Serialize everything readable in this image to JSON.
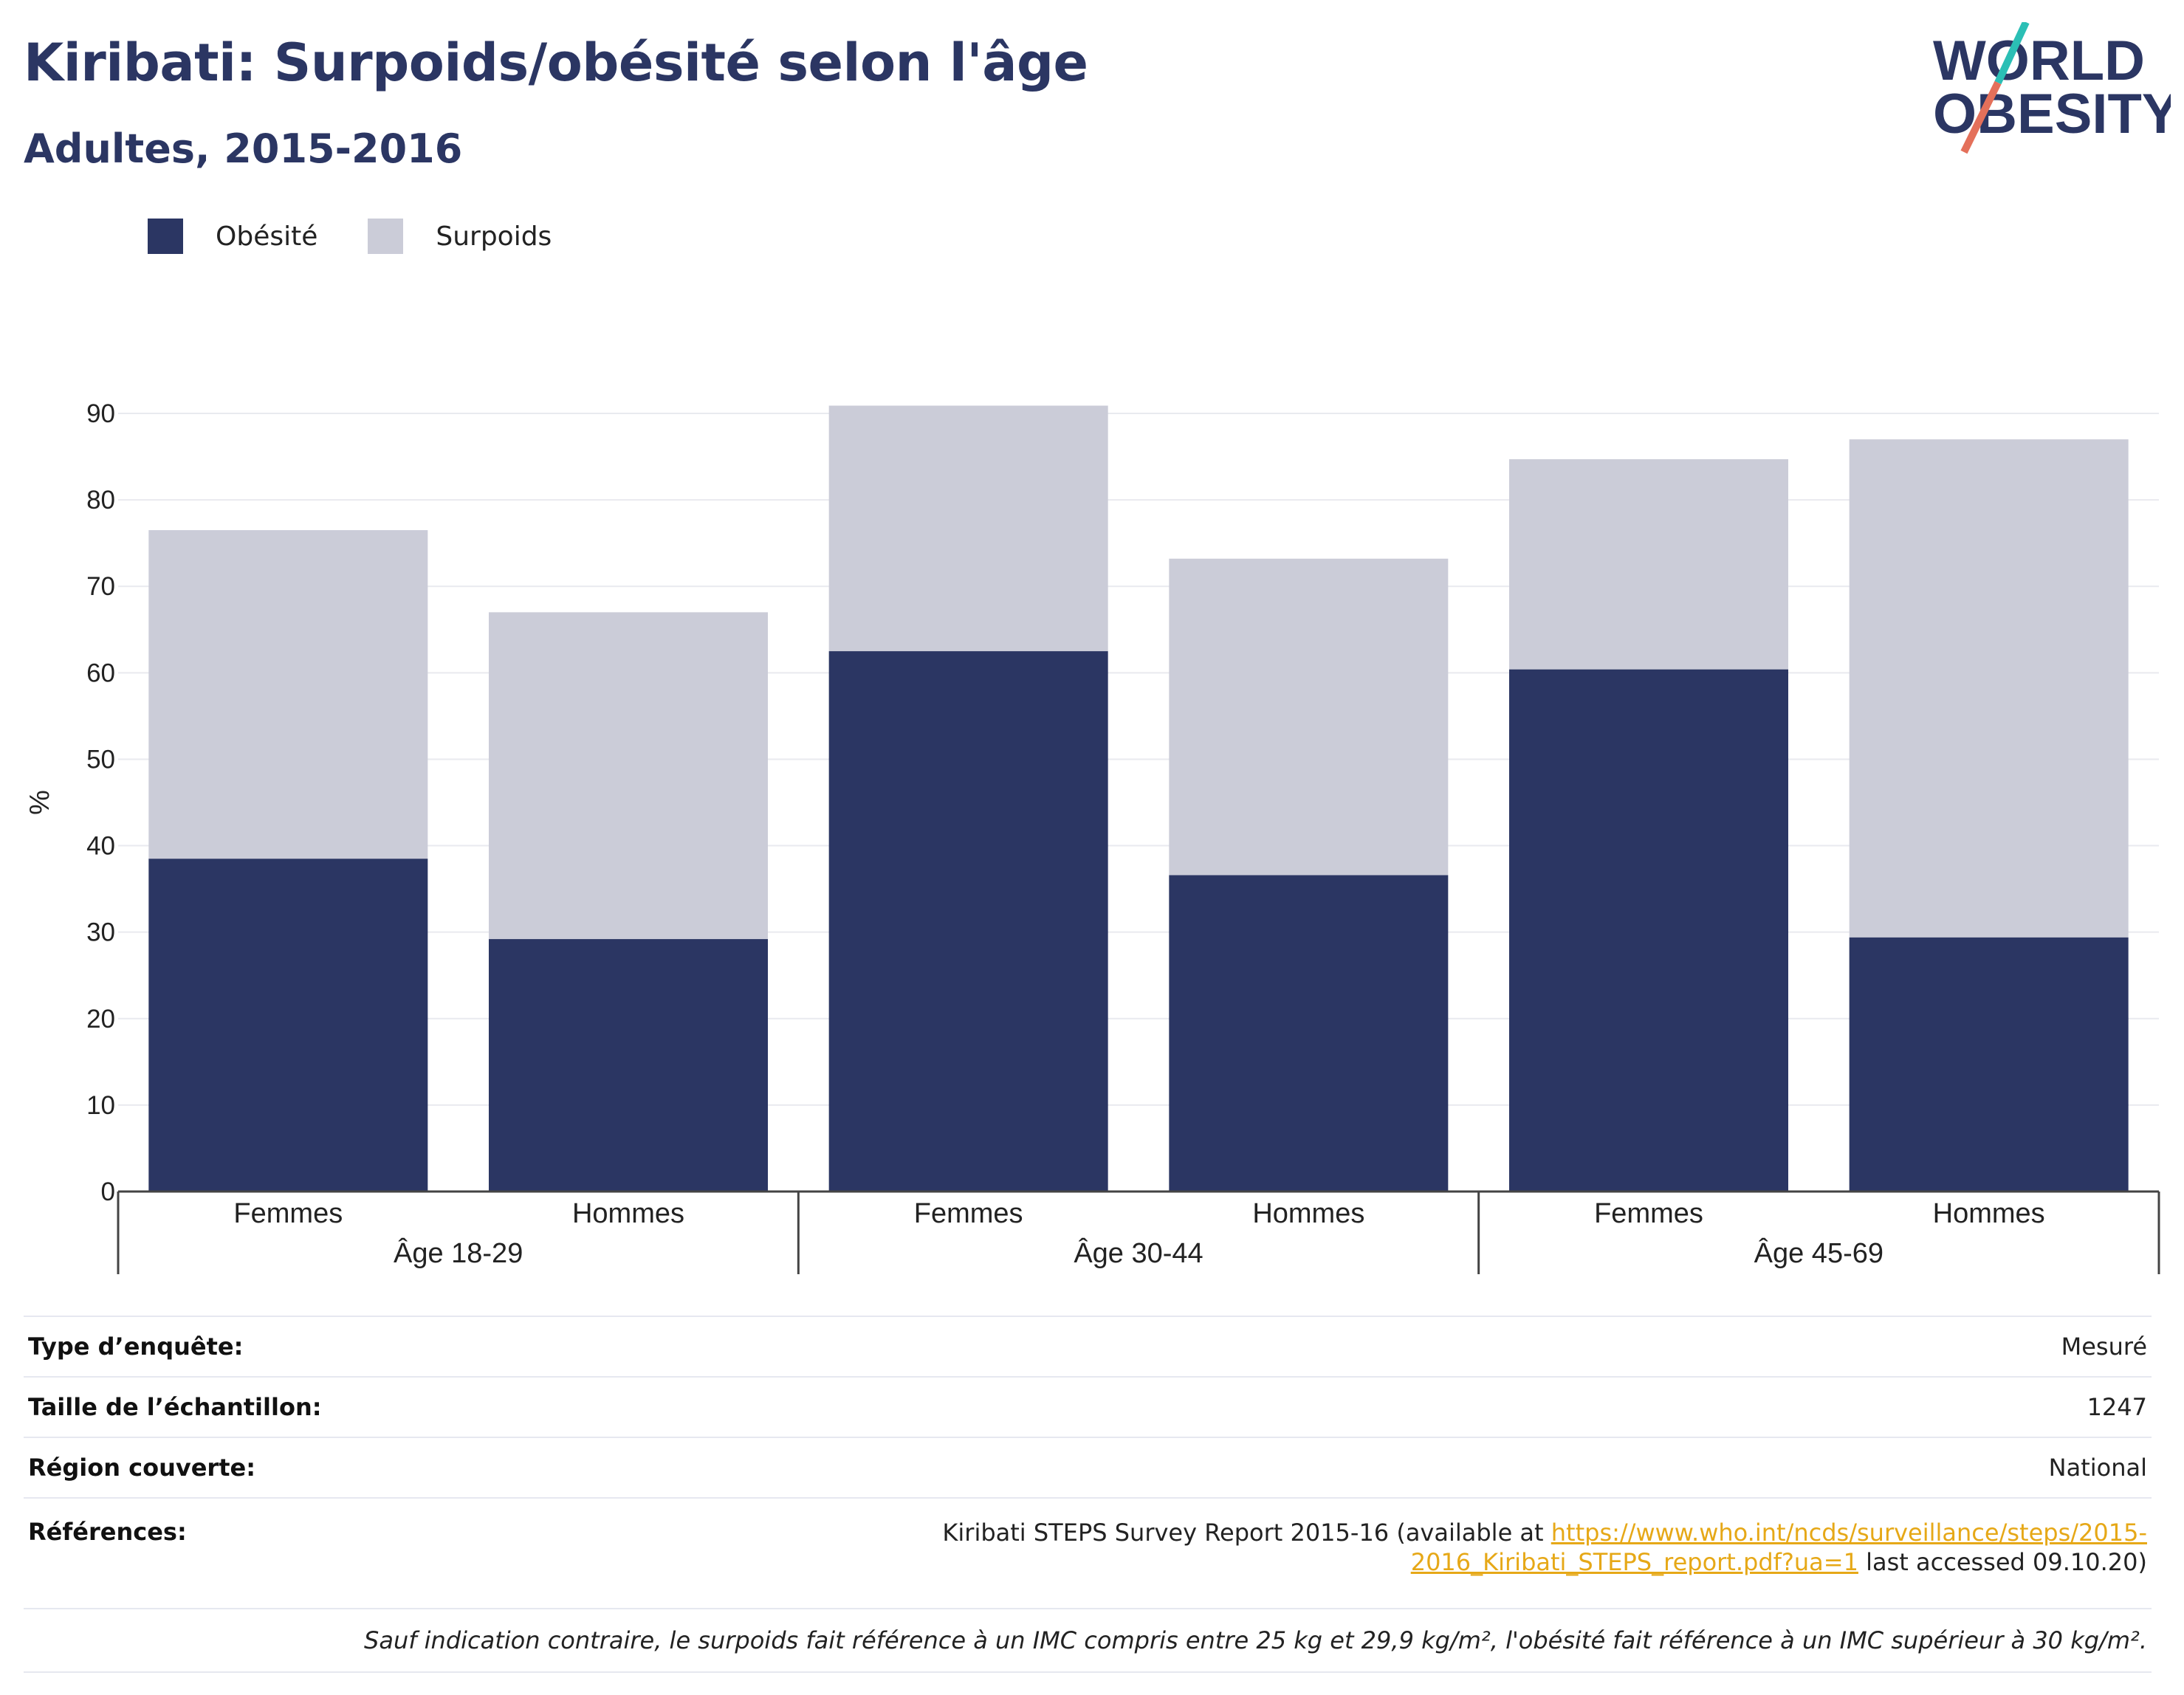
{
  "header": {
    "title": "Kiribati: Surpoids/obésité selon l'âge",
    "subtitle": "Adultes, 2015-2016"
  },
  "logo": {
    "line1": "WORLD",
    "line2": "OBESITY",
    "colors": {
      "text": "#2b3663",
      "slash_top": "#2bbfb5",
      "slash_bottom": "#e4705a"
    }
  },
  "colors": {
    "obesite": "#2b3663",
    "surpoids": "#cbccd8"
  },
  "chart_data": {
    "type": "bar",
    "stacked": true,
    "ylabel": "%",
    "ylim": [
      0,
      90
    ],
    "yticks": [
      0,
      10,
      20,
      30,
      40,
      50,
      60,
      70,
      80,
      90
    ],
    "grid": true,
    "legend_position": "top-left",
    "categories": [
      "Femmes",
      "Hommes",
      "Femmes",
      "Hommes",
      "Femmes",
      "Hommes"
    ],
    "groups": [
      "Âge 18-29",
      "Âge 30-44",
      "Âge 45-69"
    ],
    "series": [
      {
        "name": "Obésité",
        "values": [
          38.5,
          29.2,
          62.5,
          36.6,
          60.4,
          29.4
        ]
      },
      {
        "name": "Surpoids",
        "values": [
          38.0,
          37.8,
          28.4,
          36.6,
          24.3,
          57.6
        ]
      }
    ]
  },
  "info": {
    "survey_type_label": "Type d’enquête:",
    "survey_type_value": "Mesuré",
    "sample_label": "Taille de l’échantillon:",
    "sample_value": "1247",
    "region_label": "Région couverte:",
    "region_value": "National",
    "refs_label": "Références:",
    "refs_text_before": "Kiribati STEPS Survey Report 2015-16 (available at ",
    "refs_link_line1": "https://www.who.int/ncds/surveillance/steps/2015-",
    "refs_link_line2": "2016_Kiribati_STEPS_report.pdf?ua=1",
    "refs_text_after": " last accessed 09.10.20)",
    "note": "Sauf indication contraire, le surpoids fait référence à un IMC compris entre 25 kg et 29,9 kg/m², l'obésité fait référence à un IMC supérieur à 30 kg/m²."
  }
}
